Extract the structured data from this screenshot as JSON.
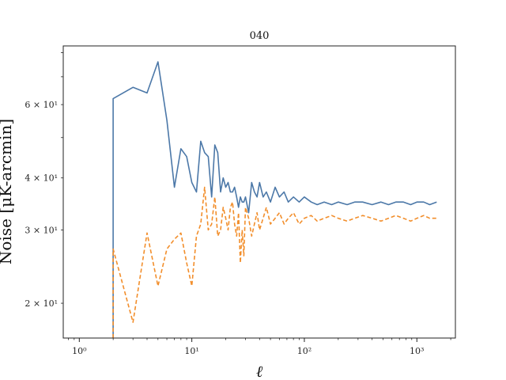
{
  "chart_data": {
    "type": "line",
    "title": "040",
    "xlabel": "ℓ",
    "ylabel": "Noise [μK-arcmin]",
    "xscale": "log",
    "yscale": "log",
    "xlim": [
      0.72,
      2200
    ],
    "ylim": [
      16.5,
      83
    ],
    "grid": false,
    "x_ticks": [
      {
        "value": 1,
        "label": "10⁰"
      },
      {
        "value": 10,
        "label": "10¹"
      },
      {
        "value": 100,
        "label": "10²"
      },
      {
        "value": 1000,
        "label": "10³"
      }
    ],
    "y_ticks": [
      {
        "value": 20,
        "label": "2 × 10¹"
      },
      {
        "value": 30,
        "label": "3 × 10¹"
      },
      {
        "value": 40,
        "label": "4 × 10¹"
      },
      {
        "value": 60,
        "label": "6 × 10¹"
      }
    ],
    "series": [
      {
        "style": "solid",
        "color": "#4c78a8",
        "x": [
          2,
          2,
          3,
          4,
          5,
          6,
          7,
          8,
          9,
          10,
          11,
          12,
          13,
          14,
          15,
          16,
          17,
          18,
          19,
          20,
          21,
          22,
          23,
          24,
          25,
          26,
          27,
          28,
          29,
          30,
          32,
          34,
          36,
          38,
          40,
          43,
          46,
          50,
          55,
          60,
          66,
          72,
          80,
          90,
          100,
          115,
          130,
          150,
          175,
          200,
          240,
          280,
          330,
          400,
          480,
          560,
          650,
          760,
          880,
          1000,
          1150,
          1300,
          1500
        ],
        "y": [
          16.5,
          62,
          66,
          64,
          76,
          55,
          38,
          47,
          45,
          39,
          37,
          49,
          46,
          45,
          36,
          48,
          46,
          37,
          40,
          38,
          39,
          37,
          37,
          38,
          36,
          34,
          36,
          35,
          35,
          36,
          33,
          39,
          37,
          36,
          39,
          36,
          37,
          35,
          38,
          36,
          37,
          35,
          36,
          35,
          36,
          35,
          34.5,
          35,
          34.5,
          35,
          34.5,
          35,
          35,
          34.5,
          35,
          34.5,
          35,
          35,
          34.5,
          35,
          35,
          34.5,
          35
        ]
      },
      {
        "style": "dashed",
        "color": "#f28e2b",
        "x": [
          2,
          2,
          3,
          4,
          5,
          6,
          7,
          8,
          9,
          10,
          11,
          12,
          13,
          14,
          15,
          16,
          17,
          18,
          19,
          20,
          21,
          22,
          23,
          24,
          25,
          26,
          27,
          28,
          29,
          30,
          32,
          34,
          36,
          38,
          40,
          43,
          46,
          50,
          55,
          60,
          66,
          72,
          80,
          90,
          100,
          115,
          130,
          150,
          175,
          200,
          240,
          280,
          330,
          400,
          480,
          560,
          650,
          760,
          880,
          1000,
          1150,
          1300,
          1500
        ],
        "y": [
          16.5,
          27,
          18,
          29.5,
          22,
          27,
          28.5,
          29.5,
          25,
          22,
          29,
          31,
          38,
          30,
          31,
          36,
          29,
          30,
          34,
          32,
          30,
          34,
          35,
          31,
          29,
          33,
          25,
          30,
          26,
          34,
          32,
          29,
          31,
          33,
          30,
          32,
          34,
          31,
          32,
          33,
          31,
          32,
          33,
          31,
          32,
          32.5,
          31.5,
          32,
          32.5,
          32,
          31.5,
          32,
          32.5,
          32,
          31.5,
          32,
          32.5,
          32,
          31.5,
          32,
          32.5,
          32,
          32
        ]
      }
    ]
  }
}
